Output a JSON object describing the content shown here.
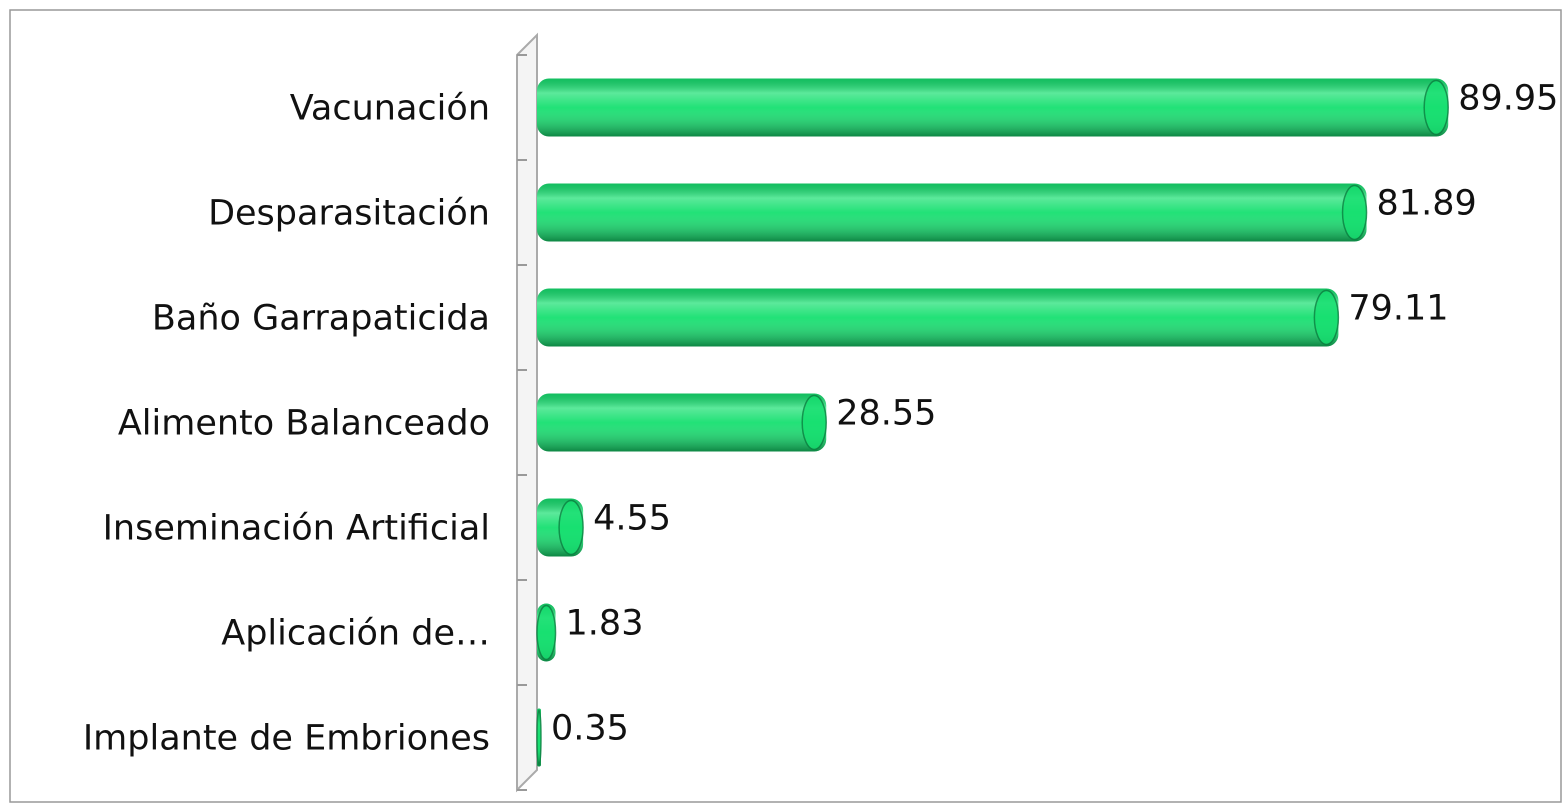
{
  "chart_data": {
    "type": "bar",
    "orientation": "horizontal",
    "categories": [
      "Vacunación",
      "Desparasitación",
      "Baño Garrapaticida",
      "Alimento Balanceado",
      "Inseminación Artificial",
      "Aplicación de…",
      "Implante de Embriones"
    ],
    "values": [
      89.95,
      81.89,
      79.11,
      28.55,
      4.55,
      1.83,
      0.35
    ],
    "color": "#16e070",
    "xlim": [
      0,
      100
    ]
  }
}
